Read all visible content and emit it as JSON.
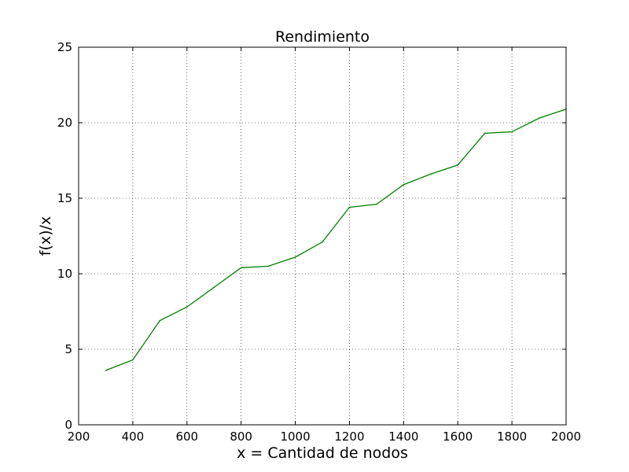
{
  "chart_data": {
    "type": "line",
    "title": "Rendimiento",
    "xlabel": "x = Cantidad de nodos",
    "ylabel": "f(x)/x",
    "xlim": [
      200,
      2000
    ],
    "ylim": [
      0,
      25
    ],
    "xticks": [
      200,
      400,
      600,
      800,
      1000,
      1200,
      1400,
      1600,
      1800,
      2000
    ],
    "yticks": [
      0,
      5,
      10,
      15,
      20,
      25
    ],
    "grid": true,
    "series": [
      {
        "color": "#008000",
        "x": [
          300,
          400,
          500,
          600,
          700,
          800,
          900,
          1000,
          1100,
          1200,
          1300,
          1400,
          1500,
          1600,
          1700,
          1800,
          1900,
          2000
        ],
        "y": [
          3.6,
          4.3,
          6.9,
          7.8,
          9.1,
          10.4,
          10.5,
          11.1,
          12.1,
          14.4,
          14.6,
          15.9,
          16.6,
          17.2,
          19.3,
          19.4,
          20.3,
          20.9
        ]
      }
    ]
  }
}
